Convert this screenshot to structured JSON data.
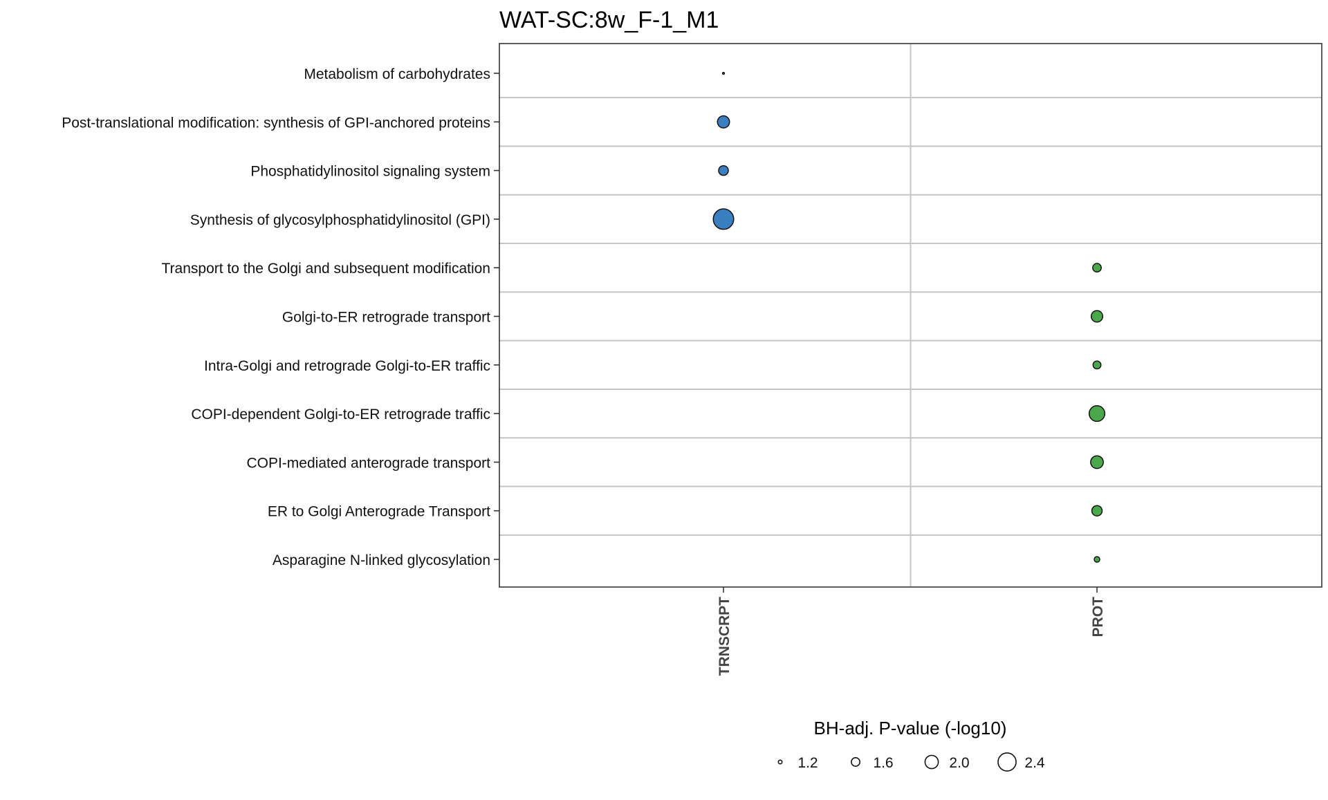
{
  "chart_data": {
    "type": "scatter",
    "title": "WAT-SC:8w_F-1_M1",
    "categories_x": [
      "TRNSCRPT",
      "PROT"
    ],
    "categories_y": [
      "Metabolism of carbohydrates",
      "Post-translational modification: synthesis of GPI-anchored proteins",
      "Phosphatidylinositol signaling system",
      "Synthesis of glycosylphosphatidylinositol (GPI)",
      "Transport to the Golgi and subsequent modification",
      "Golgi-to-ER retrograde transport",
      "Intra-Golgi and retrograde Golgi-to-ER traffic",
      "COPI-dependent Golgi-to-ER retrograde traffic",
      "COPI-mediated anterograde transport",
      "ER to Golgi Anterograde Transport",
      "Asparagine N-linked glycosylation"
    ],
    "points": [
      {
        "x": "TRNSCRPT",
        "y": "Metabolism of carbohydrates",
        "value": 1.05,
        "color": "#3a7fc0"
      },
      {
        "x": "TRNSCRPT",
        "y": "Post-translational modification: synthesis of GPI-anchored proteins",
        "value": 1.9,
        "color": "#3a7fc0"
      },
      {
        "x": "TRNSCRPT",
        "y": "Phosphatidylinositol signaling system",
        "value": 1.7,
        "color": "#3a7fc0"
      },
      {
        "x": "TRNSCRPT",
        "y": "Synthesis of glycosylphosphatidylinositol (GPI)",
        "value": 2.6,
        "color": "#3a7fc0"
      },
      {
        "x": "PROT",
        "y": "Transport to the Golgi and subsequent modification",
        "value": 1.6,
        "color": "#4aa84a"
      },
      {
        "x": "PROT",
        "y": "Golgi-to-ER retrograde transport",
        "value": 1.85,
        "color": "#4aa84a"
      },
      {
        "x": "PROT",
        "y": "Intra-Golgi and retrograde Golgi-to-ER traffic",
        "value": 1.55,
        "color": "#4aa84a"
      },
      {
        "x": "PROT",
        "y": "COPI-dependent Golgi-to-ER retrograde traffic",
        "value": 2.2,
        "color": "#4aa84a"
      },
      {
        "x": "PROT",
        "y": "COPI-mediated anterograde transport",
        "value": 1.95,
        "color": "#4aa84a"
      },
      {
        "x": "PROT",
        "y": "ER to Golgi Anterograde Transport",
        "value": 1.75,
        "color": "#4aa84a"
      },
      {
        "x": "PROT",
        "y": "Asparagine N-linked glycosylation",
        "value": 1.35,
        "color": "#4aa84a"
      }
    ],
    "legend": {
      "title": "BH-adj. P-value (-log10)",
      "placement": "bottom",
      "values": [
        1.2,
        1.6,
        2.0,
        2.4
      ],
      "labels": [
        "1.2",
        "1.6",
        "2.0",
        "2.4"
      ]
    },
    "grid": true,
    "colors": {
      "transcript": "#3a7fc0",
      "protein": "#4aa84a",
      "grid": "#c4c4c4",
      "border": "#333333"
    }
  }
}
